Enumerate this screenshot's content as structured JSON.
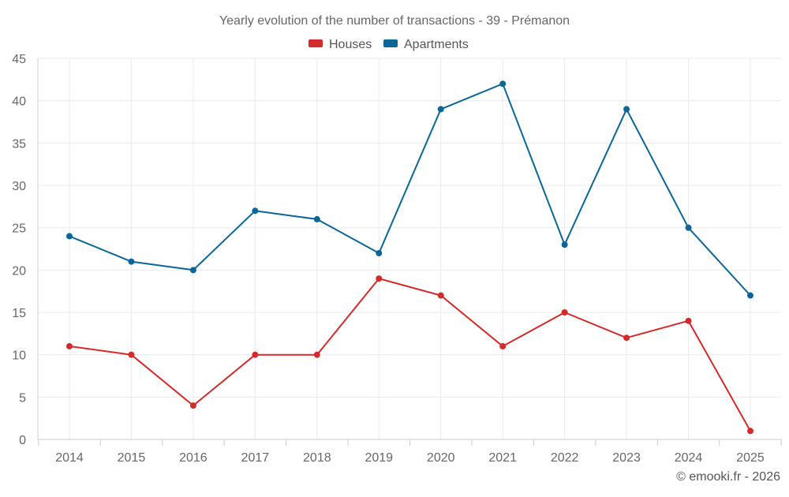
{
  "chart_data": {
    "type": "line",
    "title": "Yearly evolution of the number of transactions - 39 - Prémanon",
    "categories": [
      "2014",
      "2015",
      "2016",
      "2017",
      "2018",
      "2019",
      "2020",
      "2021",
      "2022",
      "2023",
      "2024",
      "2025"
    ],
    "series": [
      {
        "name": "Houses",
        "color": "#d42a2a",
        "values": [
          11,
          10,
          4,
          10,
          10,
          19,
          17,
          11,
          15,
          12,
          14,
          1
        ]
      },
      {
        "name": "Apartments",
        "color": "#0a6699",
        "values": [
          24,
          21,
          20,
          27,
          26,
          22,
          39,
          42,
          23,
          39,
          25,
          17
        ]
      }
    ],
    "ylim": [
      0,
      45
    ],
    "yticks": [
      0,
      5,
      10,
      15,
      20,
      25,
      30,
      35,
      40,
      45
    ],
    "grid": true,
    "legend": "top-center",
    "xlabel": "",
    "ylabel": ""
  },
  "credit": "© emooki.fr - 2026"
}
